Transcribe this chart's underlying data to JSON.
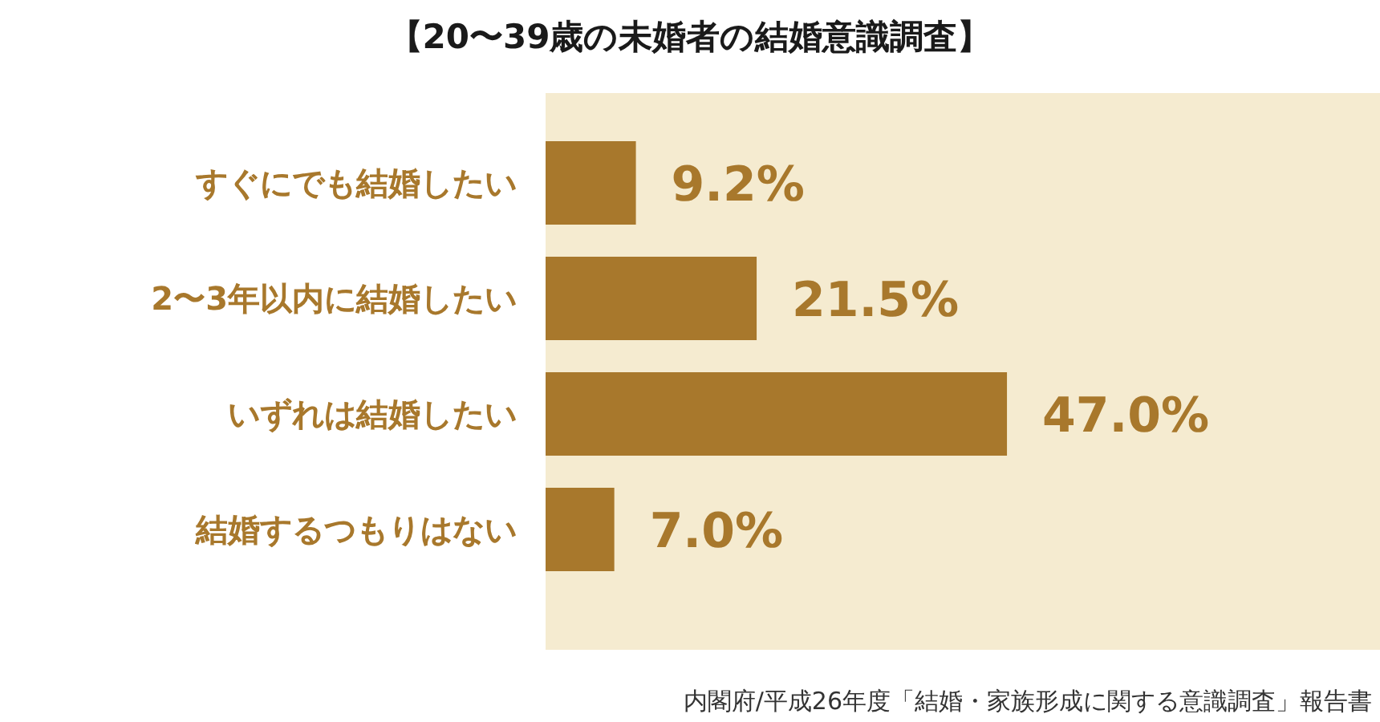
{
  "chart_data": {
    "type": "bar",
    "orientation": "horizontal",
    "title": "【20〜39歳の未婚者の結婚意識調査】",
    "categories": [
      "すぐにでも結婚したい",
      "2〜3年以内に結婚したい",
      "いずれは結婚したい",
      "結婚するつもりはない"
    ],
    "values": [
      9.2,
      21.5,
      47.0,
      7.0
    ],
    "value_labels": [
      "9.2%",
      "21.5%",
      "47.0%",
      "7.0%"
    ],
    "color": "#a8782c",
    "xlim": [
      0,
      85
    ],
    "annotations": [
      "内閣府/平成26年度「結婚・家族形成に関する意識調査」報告書"
    ]
  }
}
